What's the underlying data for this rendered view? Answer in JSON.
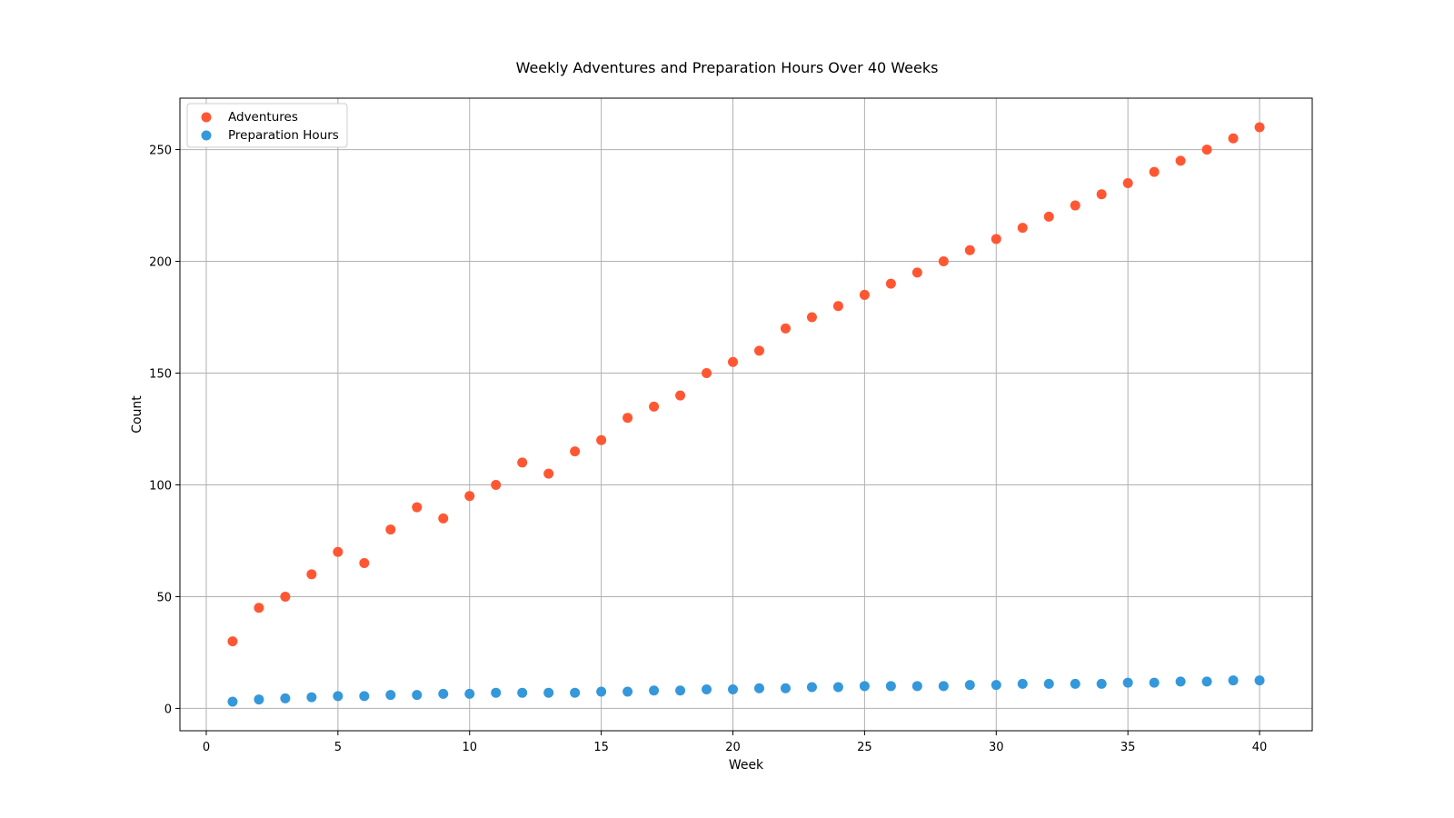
{
  "chart_data": {
    "type": "scatter",
    "title": "Weekly Adventures and Preparation Hours Over 40 Weeks",
    "xlabel": "Week",
    "ylabel": "Count",
    "xlim": [
      -1,
      42
    ],
    "ylim": [
      -10,
      273
    ],
    "xticks": [
      0,
      5,
      10,
      15,
      20,
      25,
      30,
      35,
      40
    ],
    "yticks": [
      0,
      50,
      100,
      150,
      200,
      250
    ],
    "grid": true,
    "legend_position": "top-left",
    "x": [
      1,
      2,
      3,
      4,
      5,
      6,
      7,
      8,
      9,
      10,
      11,
      12,
      13,
      14,
      15,
      16,
      17,
      18,
      19,
      20,
      21,
      22,
      23,
      24,
      25,
      26,
      27,
      28,
      29,
      30,
      31,
      32,
      33,
      34,
      35,
      36,
      37,
      38,
      39,
      40
    ],
    "series": [
      {
        "name": "Adventures",
        "color": "#ff5733",
        "values": [
          30,
          45,
          50,
          60,
          70,
          65,
          80,
          90,
          85,
          95,
          100,
          110,
          105,
          115,
          120,
          130,
          135,
          140,
          150,
          155,
          160,
          170,
          175,
          180,
          185,
          190,
          195,
          200,
          205,
          210,
          215,
          220,
          225,
          230,
          235,
          240,
          245,
          250,
          255,
          260
        ]
      },
      {
        "name": "Preparation Hours",
        "color": "#3498db",
        "values": [
          3,
          4,
          4.5,
          5,
          5.5,
          5.5,
          6,
          6,
          6.5,
          6.5,
          7,
          7,
          7,
          7,
          7.5,
          7.5,
          8,
          8,
          8.5,
          8.5,
          9,
          9,
          9.5,
          9.5,
          10,
          10,
          10,
          10,
          10.5,
          10.5,
          11,
          11,
          11,
          11,
          11.5,
          11.5,
          12,
          12,
          12.5,
          12.5
        ]
      }
    ]
  }
}
